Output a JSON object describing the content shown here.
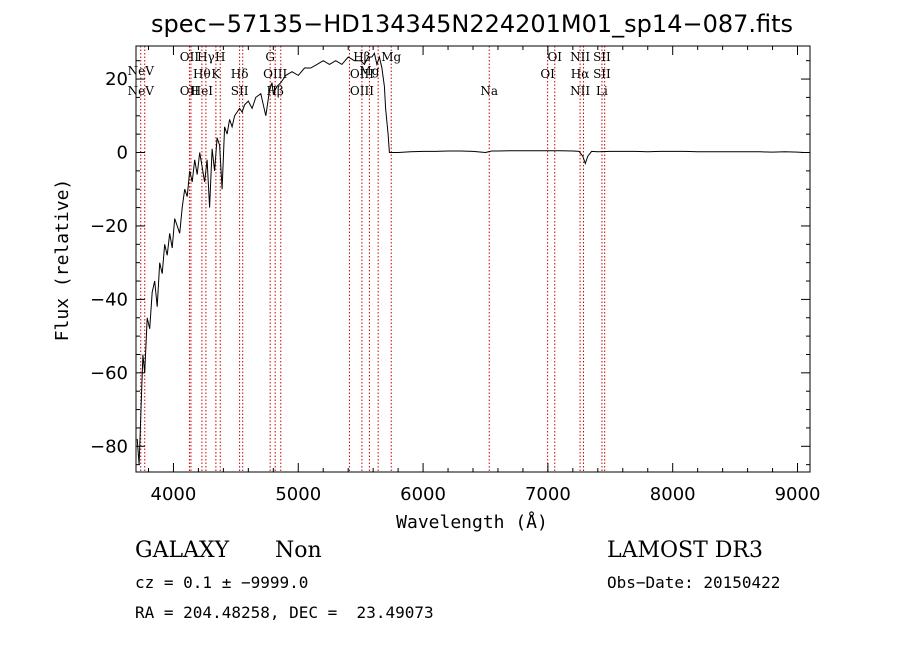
{
  "chart_data": {
    "type": "line",
    "title": "spec−57135−HD134345N224201M01_sp14−087.fits",
    "xlabel": "Wavelength (Å)",
    "ylabel": "Flux (relative)",
    "xlim": [
      3700,
      9100
    ],
    "ylim": [
      -87,
      29
    ],
    "xticks": [
      4000,
      5000,
      6000,
      7000,
      8000,
      9000
    ],
    "yticks": [
      -80,
      -60,
      -40,
      -20,
      0,
      20
    ],
    "line_color": "#000000",
    "marker_color": "#cc0000",
    "series": [
      {
        "x": [
          3710,
          3725,
          3740,
          3755,
          3770,
          3790,
          3810,
          3830,
          3850,
          3870,
          3890,
          3910,
          3930,
          3950,
          3970,
          3990,
          4010,
          4030,
          4050,
          4070,
          4090,
          4110,
          4130,
          4150,
          4170,
          4190,
          4210,
          4230,
          4250,
          4270,
          4290,
          4310,
          4330,
          4350,
          4370,
          4390,
          4410,
          4430,
          4450,
          4470,
          4490,
          4510,
          4530,
          4550,
          4570,
          4600,
          4630,
          4660,
          4700,
          4740,
          4770,
          4790,
          4800,
          4830,
          4860,
          4900,
          4950,
          5000,
          5050,
          5100,
          5150,
          5200,
          5250,
          5300,
          5350,
          5400,
          5450,
          5500,
          5530,
          5560,
          5590,
          5610,
          5630,
          5650,
          5670,
          5690,
          5700,
          5720,
          5730,
          5760,
          5800,
          5900,
          6000,
          6100,
          6200,
          6300,
          6400,
          6500,
          6550,
          6600,
          6700,
          6800,
          6900,
          7000,
          7100,
          7200,
          7250,
          7280,
          7300,
          7320,
          7350,
          7400,
          7500,
          7600,
          7700,
          7800,
          7900,
          8000,
          8100,
          8200,
          8300,
          8400,
          8500,
          8600,
          8700,
          8800,
          8900,
          9000,
          9050
        ],
        "y": [
          -78,
          -85,
          -70,
          -55,
          -60,
          -45,
          -48,
          -38,
          -35,
          -42,
          -30,
          -33,
          -25,
          -28,
          -22,
          -26,
          -18,
          -20,
          -22,
          -15,
          -10,
          -12,
          -5,
          -8,
          -2,
          -6,
          0,
          -4,
          -8,
          -2,
          -15,
          1,
          -5,
          4,
          2,
          -10,
          7,
          5,
          9,
          7,
          10,
          11,
          12,
          11,
          13,
          14,
          12,
          15,
          16,
          10,
          17,
          19,
          16,
          18,
          19,
          21,
          22,
          21,
          23,
          23,
          24,
          25,
          24,
          25,
          24,
          26,
          25,
          25,
          24,
          26,
          26,
          27,
          24,
          26,
          23,
          18,
          12,
          5,
          0,
          0,
          0,
          0.2,
          0.3,
          0.3,
          0.4,
          0.4,
          0.3,
          0,
          0.4,
          0.4,
          0.5,
          0.5,
          0.5,
          0.5,
          0.5,
          0.4,
          0.3,
          -1,
          -3,
          -1,
          0.3,
          0.2,
          0.3,
          0.3,
          0.3,
          0.2,
          0.3,
          0.3,
          0.3,
          0.2,
          0.2,
          0.2,
          0.2,
          0.2,
          0.2,
          0.1,
          0.2,
          0.1,
          0
        ]
      }
    ],
    "lines": [
      {
        "x": 3738,
        "labels": [
          {
            "text": "NeV",
            "row": 1
          },
          {
            "text": "NeV",
            "row": 3
          }
        ]
      },
      {
        "x": 3770,
        "labels": []
      },
      {
        "x": 4128,
        "labels": [
          {
            "text": "OII",
            "row": 0
          },
          {
            "text": "OII",
            "row": 3
          }
        ]
      },
      {
        "x": 4140,
        "labels": []
      },
      {
        "x": 4228,
        "labels": [
          {
            "text": "Hθ",
            "row": 2
          },
          {
            "text": "HeI",
            "row": 3
          }
        ]
      },
      {
        "x": 4260,
        "labels": [
          {
            "text": "Hγ",
            "row": 0
          }
        ]
      },
      {
        "x": 4340,
        "labels": [
          {
            "text": "K",
            "row": 2
          }
        ]
      },
      {
        "x": 4375,
        "labels": [
          {
            "text": "H",
            "row": 0
          }
        ]
      },
      {
        "x": 4530,
        "labels": [
          {
            "text": "Hδ",
            "row": 2
          },
          {
            "text": "SII",
            "row": 3
          }
        ]
      },
      {
        "x": 4555,
        "labels": []
      },
      {
        "x": 4775,
        "labels": [
          {
            "text": "G",
            "row": 0
          }
        ]
      },
      {
        "x": 4815,
        "labels": [
          {
            "text": "OIII",
            "row": 2
          },
          {
            "text": "Hβ",
            "row": 3
          }
        ]
      },
      {
        "x": 4860,
        "labels": []
      },
      {
        "x": 5410,
        "labels": []
      },
      {
        "x": 5510,
        "labels": [
          {
            "text": "Hβ",
            "row": 0
          },
          {
            "text": "OIII",
            "row": 2
          },
          {
            "text": "OIII",
            "row": 3
          }
        ]
      },
      {
        "x": 5570,
        "labels": [
          {
            "text": "Mg",
            "row": 1
          }
        ]
      },
      {
        "x": 5640,
        "labels": []
      },
      {
        "x": 5745,
        "labels": [
          {
            "text": "Mg",
            "row": 0
          }
        ]
      },
      {
        "x": 6530,
        "labels": [
          {
            "text": "Na",
            "row": 3
          }
        ]
      },
      {
        "x": 6998,
        "labels": [
          {
            "text": "OI",
            "row": 2
          }
        ]
      },
      {
        "x": 7055,
        "labels": [
          {
            "text": "OI",
            "row": 0
          }
        ]
      },
      {
        "x": 7258,
        "labels": [
          {
            "text": "NII",
            "row": 0
          },
          {
            "text": "Hα",
            "row": 2
          },
          {
            "text": "NII",
            "row": 3
          }
        ]
      },
      {
        "x": 7285,
        "labels": []
      },
      {
        "x": 7433,
        "labels": [
          {
            "text": "SII",
            "row": 0
          },
          {
            "text": "SII",
            "row": 2
          },
          {
            "text": "Li",
            "row": 3
          }
        ]
      },
      {
        "x": 7455,
        "labels": []
      }
    ]
  },
  "info": {
    "class_label": "GALAXY",
    "subclass_label": "Non",
    "survey": "LAMOST DR3",
    "redshift": "cz = 0.1 ± −9999.0",
    "obs_date": "Obs−Date: 20150422",
    "coords": "RA = 204.48258, DEC =  23.49073"
  }
}
